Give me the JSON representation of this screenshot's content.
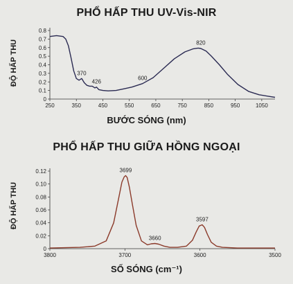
{
  "chart_data": [
    {
      "type": "line",
      "title": "PHỔ HẤP THU UV-Vis-NIR",
      "xlabel": "BƯỚC SÓNG (nm)",
      "ylabel": "ĐỘ HẤP THU",
      "xlim": [
        250,
        1100
      ],
      "ylim": [
        0,
        0.8
      ],
      "x_ticks": [
        "250",
        "350",
        "450",
        "550",
        "650",
        "750",
        "850",
        "950",
        "1050"
      ],
      "y_ticks": [
        "0",
        "0.1",
        "0.2",
        "0.3",
        "0.4",
        "0.5",
        "0.6",
        "0.7",
        "0.8"
      ],
      "grid": false,
      "line_color": "#2a2a52",
      "series": [
        {
          "x": [
            250,
            275,
            300,
            310,
            320,
            330,
            340,
            350,
            360,
            370,
            380,
            390,
            400,
            410,
            420,
            426,
            435,
            450,
            470,
            500,
            530,
            560,
            600,
            640,
            680,
            720,
            760,
            790,
            810,
            820,
            840,
            860,
            890,
            920,
            960,
            1000,
            1040,
            1080,
            1100
          ],
          "y": [
            0.73,
            0.74,
            0.73,
            0.7,
            0.62,
            0.48,
            0.33,
            0.24,
            0.22,
            0.24,
            0.19,
            0.16,
            0.15,
            0.15,
            0.13,
            0.14,
            0.11,
            0.1,
            0.095,
            0.1,
            0.12,
            0.14,
            0.18,
            0.25,
            0.36,
            0.47,
            0.55,
            0.585,
            0.595,
            0.59,
            0.56,
            0.5,
            0.4,
            0.29,
            0.17,
            0.09,
            0.05,
            0.03,
            0.02
          ]
        }
      ],
      "annotations": [
        {
          "text": "370",
          "x": 370,
          "y": 0.24
        },
        {
          "text": "426",
          "x": 426,
          "y": 0.14
        },
        {
          "text": "600",
          "x": 600,
          "y": 0.18
        },
        {
          "text": "820",
          "x": 820,
          "y": 0.595
        }
      ]
    },
    {
      "type": "line",
      "title": "PHỔ HẤP THU GIỮA HỒNG NGOẠI",
      "xlabel": "SỐ SÓNG (cm⁻¹)",
      "ylabel": "ĐỘ HẤP THU",
      "xlim": [
        3800,
        3500
      ],
      "ylim": [
        0,
        0.12
      ],
      "x_ticks": [
        "3800",
        "3700",
        "3600",
        "3500"
      ],
      "y_ticks": [
        "0",
        "0.02",
        "0.04",
        "0.06",
        "0.08",
        "0.10",
        "0.12"
      ],
      "grid": false,
      "line_color": "#8b3a2a",
      "series": [
        {
          "x": [
            3800,
            3760,
            3740,
            3725,
            3715,
            3708,
            3704,
            3701,
            3699,
            3697,
            3694,
            3690,
            3685,
            3678,
            3670,
            3665,
            3660,
            3655,
            3648,
            3640,
            3630,
            3618,
            3610,
            3605,
            3601,
            3597,
            3594,
            3590,
            3585,
            3578,
            3570,
            3550,
            3520,
            3500
          ],
          "y": [
            0.001,
            0.002,
            0.004,
            0.012,
            0.04,
            0.08,
            0.103,
            0.111,
            0.113,
            0.11,
            0.095,
            0.068,
            0.036,
            0.012,
            0.006,
            0.0075,
            0.008,
            0.007,
            0.004,
            0.002,
            0.002,
            0.004,
            0.013,
            0.026,
            0.035,
            0.037,
            0.033,
            0.022,
            0.01,
            0.004,
            0.002,
            0.001,
            0.001,
            0.001
          ]
        }
      ],
      "annotations": [
        {
          "text": "3699",
          "x": 3699,
          "y": 0.113
        },
        {
          "text": "3660",
          "x": 3660,
          "y": 0.008
        },
        {
          "text": "3597",
          "x": 3597,
          "y": 0.037
        }
      ]
    }
  ]
}
